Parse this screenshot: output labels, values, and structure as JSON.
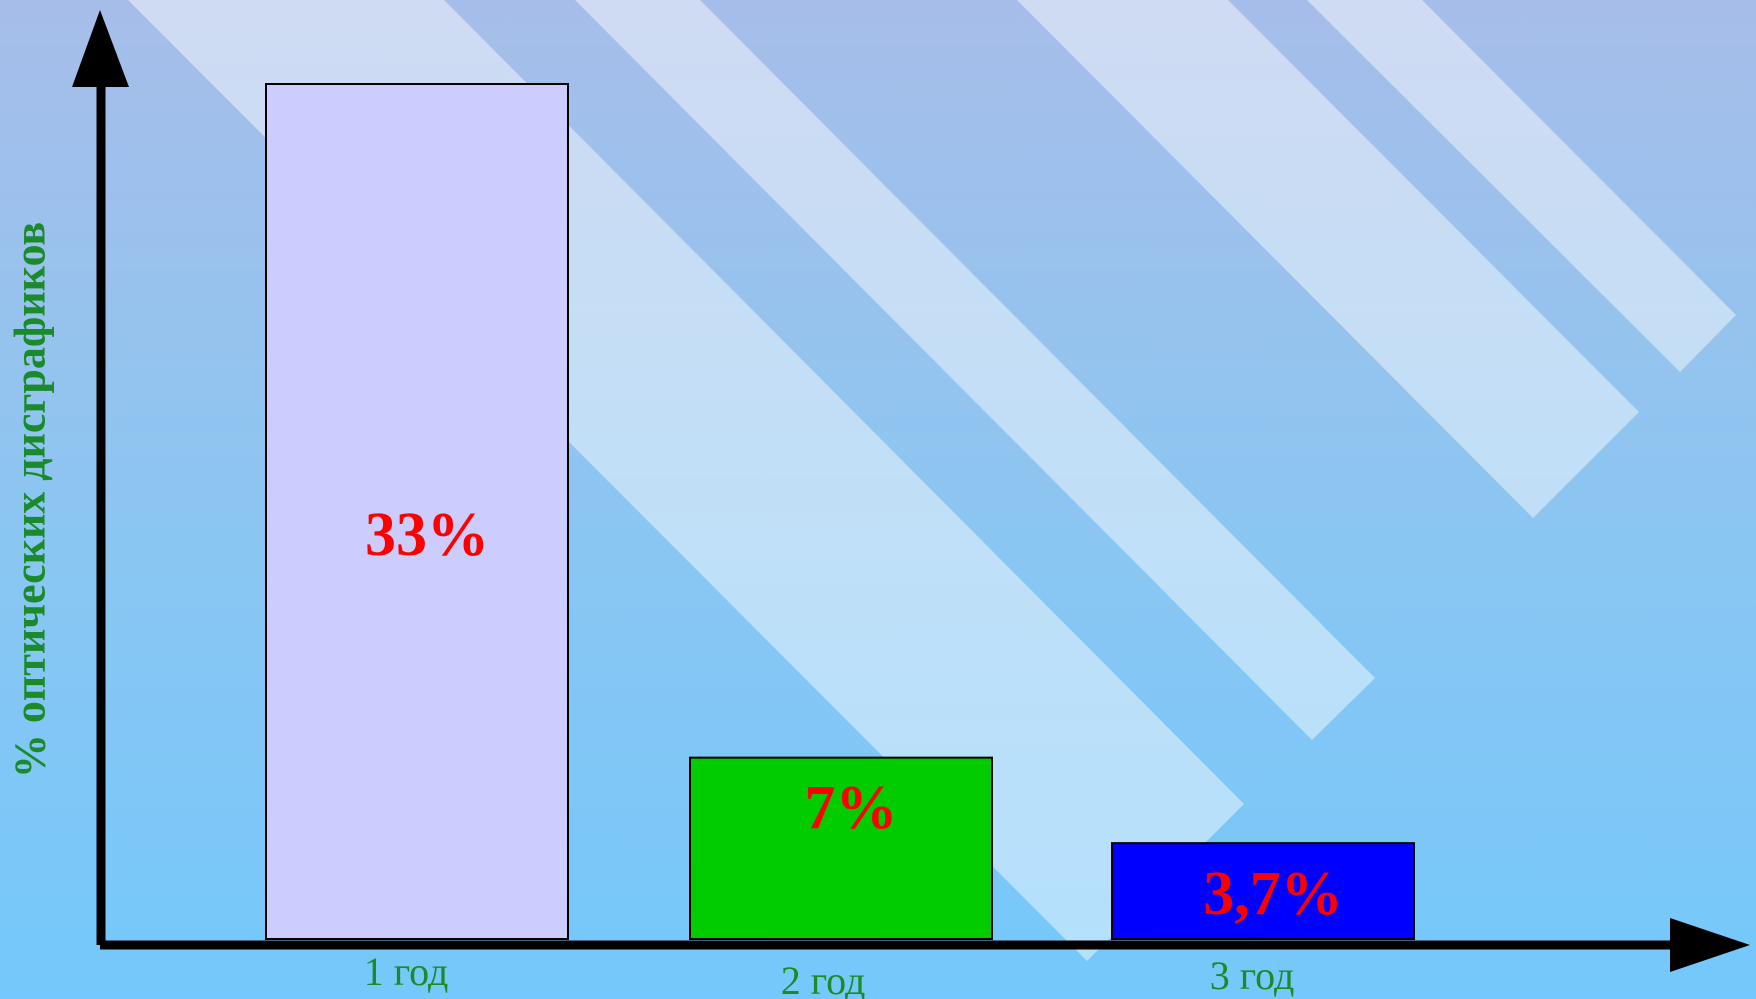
{
  "chart_data": {
    "type": "bar",
    "categories": [
      "1 год",
      "2 год",
      "3 год"
    ],
    "values": [
      33,
      7,
      3.7
    ],
    "value_labels": [
      "33%",
      "7%",
      "3,7%"
    ],
    "bar_colors": [
      "#ccccff",
      "#00cc00",
      "#0000ff"
    ],
    "value_label_color": "#ff0000",
    "category_label_color": "#1b8a2a",
    "ylabel": "% оптических дисграфиков",
    "xlabel": "",
    "ylim": [
      0,
      33
    ],
    "grid": false,
    "legend": "none"
  }
}
